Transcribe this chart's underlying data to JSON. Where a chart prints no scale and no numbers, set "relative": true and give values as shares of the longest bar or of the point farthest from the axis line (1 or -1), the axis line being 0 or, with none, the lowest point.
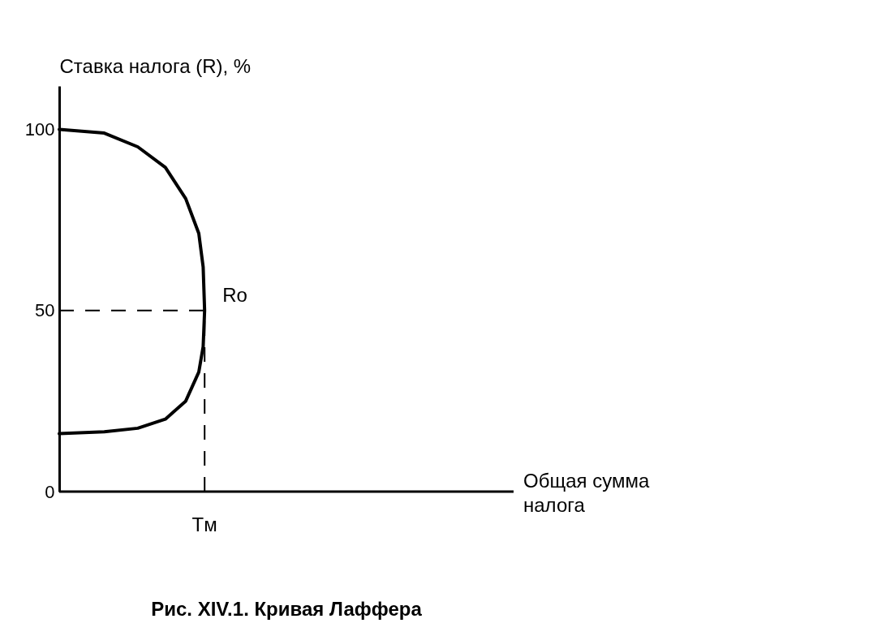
{
  "chart_data": {
    "type": "line",
    "title": "Рис. XIV.1. Кривая Лаффера",
    "ylabel": "Ставка налога (R), %",
    "orientation": "horizontal",
    "relative": true,
    "series": [
      {
        "color": "#000000",
        "x": [
          100,
          99,
          95.2,
          89.5,
          80.9,
          71.3,
          62,
          50,
          40,
          33,
          25,
          20,
          17.5,
          16.5,
          16
        ],
        "values": [
          0,
          0.31,
          0.54,
          0.73,
          0.87,
          0.96,
          0.99,
          1,
          0.99,
          0.96,
          0.87,
          0.73,
          0.54,
          0.31,
          0
        ]
      }
    ],
    "ylim": [
      0,
      112
    ],
    "yticks": [
      0,
      50,
      100
    ],
    "ref_lines": [
      {
        "axis": "y",
        "value": 50,
        "line_style": "dashed",
        "color": "#000000"
      },
      {
        "axis": "x",
        "value": 1,
        "line_style": "dashed",
        "color": "#000000"
      }
    ],
    "annotations": [
      {
        "text": "Ro",
        "x": 1,
        "y": 50
      },
      {
        "text": "Tм",
        "x": 1,
        "y": 0
      },
      "Общая сумма налога"
    ],
    "grid": false,
    "marker": "none",
    "line_style": "solid"
  }
}
